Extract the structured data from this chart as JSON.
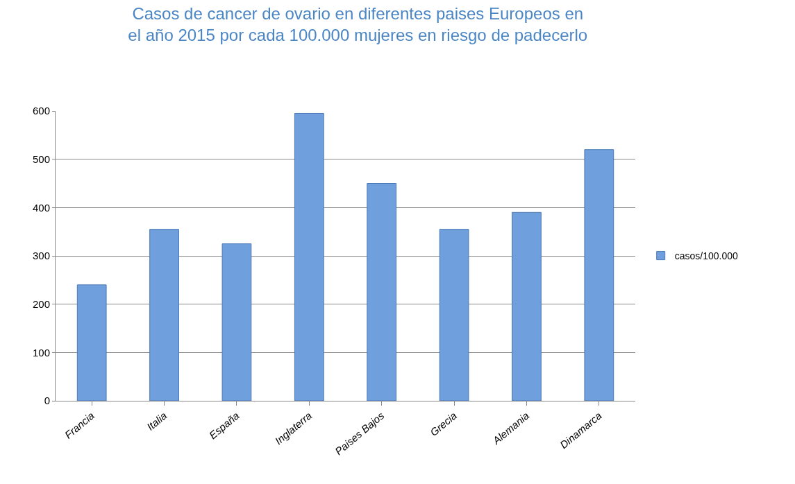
{
  "chart_data": {
    "type": "bar",
    "title": "Casos de cancer de ovario en diferentes paises Europeos en\nel año 2015 por cada 100.000 mujeres en riesgo de padecerlo",
    "categories": [
      "Francia",
      "Italia",
      "España",
      "Inglaterra",
      "Paises Bajos",
      "Grecia",
      "Alemania",
      "Dinamarca"
    ],
    "series": [
      {
        "name": "casos/100.000",
        "color": "#6f9fdc",
        "values": [
          240,
          355,
          325,
          595,
          450,
          355,
          390,
          520
        ]
      }
    ],
    "ylim": [
      0,
      600
    ],
    "yticks": [
      0,
      100,
      200,
      300,
      400,
      500,
      600
    ],
    "grid": "y",
    "legend": "right"
  }
}
